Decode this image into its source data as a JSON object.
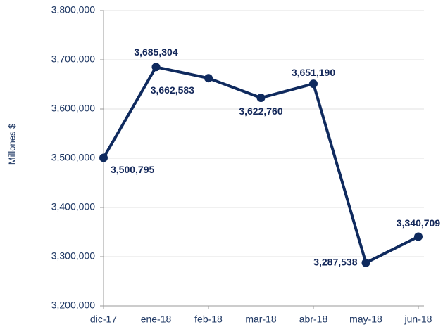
{
  "chart_data": {
    "type": "line",
    "y_label": "Millones $",
    "categories": [
      "dic-17",
      "ene-18",
      "feb-18",
      "mar-18",
      "abr-18",
      "may-18",
      "jun-18"
    ],
    "series": [
      {
        "name": "Millones $",
        "color": "#0f2a5e",
        "values": [
          3500795,
          3685304,
          3662583,
          3622760,
          3651190,
          3287538,
          3340709
        ],
        "value_labels": [
          "3,500,795",
          "3,685,304",
          "3,662,583",
          "3,622,760",
          "3,651,190",
          "3,287,538",
          "3,340,709"
        ]
      }
    ],
    "ylim": [
      3200000,
      3800000
    ],
    "yticks": [
      {
        "value": 3200000,
        "label": "3,200,000"
      },
      {
        "value": 3300000,
        "label": "3,300,000"
      },
      {
        "value": 3400000,
        "label": "3,400,000"
      },
      {
        "value": 3500000,
        "label": "3,500,000"
      },
      {
        "value": 3600000,
        "label": "3,600,000"
      },
      {
        "value": 3700000,
        "label": "3,700,000"
      },
      {
        "value": 3800000,
        "label": "3,800,000"
      }
    ],
    "grid": true
  }
}
